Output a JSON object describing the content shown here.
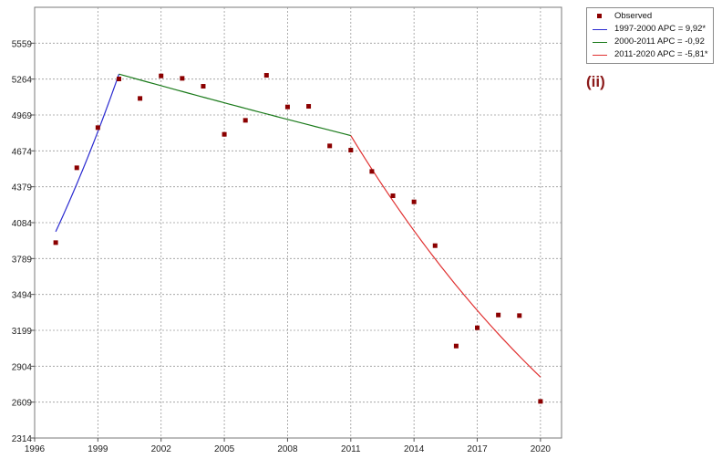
{
  "chart_data": {
    "type": "scatter",
    "title": "",
    "xlabel": "",
    "ylabel": "",
    "xlim": [
      1996,
      2021
    ],
    "ylim": [
      2314,
      5854
    ],
    "grid": true,
    "legend_placement": "top-right-outside",
    "x_ticks": [
      1996,
      1999,
      2002,
      2005,
      2008,
      2011,
      2014,
      2017,
      2020
    ],
    "y_ticks": [
      2314,
      2609,
      2904,
      3199,
      3494,
      3789,
      4084,
      4379,
      4674,
      4969,
      5264,
      5559
    ],
    "observed": {
      "name": "Observed",
      "color": "#8b0000",
      "x": [
        1997,
        1998,
        1999,
        2000,
        2001,
        2002,
        2003,
        2004,
        2005,
        2006,
        2007,
        2008,
        2009,
        2010,
        2011,
        2012,
        2013,
        2014,
        2015,
        2016,
        2017,
        2018,
        2019,
        2020
      ],
      "y": [
        3920,
        4535,
        4865,
        5265,
        5105,
        5290,
        5270,
        5205,
        4810,
        4925,
        5295,
        5035,
        5040,
        4715,
        4680,
        4505,
        4305,
        4255,
        3895,
        3070,
        3220,
        3325,
        3320,
        2615
      ]
    },
    "segments": [
      {
        "name": "1997-2000 APC  =  9,92*",
        "color": "#2a2ad0",
        "x": [
          1997,
          2000
        ],
        "y_start": 4010,
        "y_end": 5305,
        "apc": 9.92
      },
      {
        "name": "2000-2011 APC  =  -0,92",
        "color": "#1a7a1a",
        "x": [
          2000,
          2011
        ],
        "y_start": 5305,
        "y_end": 4800,
        "apc": -0.92
      },
      {
        "name": "2011-2020 APC  =  -5,81*",
        "color": "#e03030",
        "x": [
          2011,
          2020
        ],
        "y_start": 4800,
        "y_end": 2815,
        "apc": -5.81
      }
    ]
  },
  "legend": {
    "observed_label": "Observed",
    "seg1_label": "1997-2000 APC  =  9,92*",
    "seg2_label": "2000-2011 APC  =  -0,92",
    "seg3_label": "2011-2020 APC  =  -5,81*"
  },
  "panel_label": "(ii)"
}
